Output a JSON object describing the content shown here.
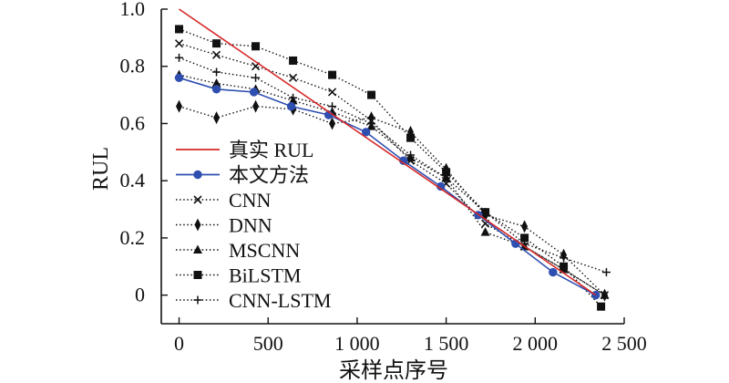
{
  "chart_data": {
    "type": "line",
    "xlabel": "采样点序号",
    "ylabel": "RUL",
    "xlim": [
      -100,
      2500
    ],
    "ylim": [
      -0.1,
      1.0
    ],
    "xticks": [
      0,
      500,
      1000,
      1500,
      2000,
      2500
    ],
    "xtick_labels": [
      "0",
      "500",
      "1 000",
      "1 500",
      "2 000",
      "2 500"
    ],
    "yticks": [
      0,
      0.2,
      0.4,
      0.6,
      0.8,
      1.0
    ],
    "ytick_labels": [
      "0",
      "0.2",
      "0.4",
      "0.6",
      "0.8",
      "1.0"
    ],
    "grid": false,
    "legend_position": "left",
    "series": [
      {
        "name": "真实 RUL",
        "style": "solid",
        "marker": "none",
        "color": "#d62728",
        "x": [
          0,
          2340
        ],
        "y": [
          1.0,
          0.0
        ]
      },
      {
        "name": "本文方法",
        "style": "solid",
        "marker": "circle",
        "color": "#2e4fb0",
        "x": [
          0,
          210,
          420,
          630,
          840,
          1050,
          1260,
          1470,
          1680,
          1890,
          2100,
          2340
        ],
        "y": [
          0.76,
          0.72,
          0.71,
          0.66,
          0.63,
          0.57,
          0.47,
          0.38,
          0.28,
          0.18,
          0.08,
          0.0
        ]
      },
      {
        "name": "CNN",
        "style": "dotted",
        "marker": "x",
        "color": "#111111",
        "x": [
          0,
          210,
          430,
          640,
          860,
          1080,
          1300,
          1500,
          1720,
          1940,
          2160,
          2390
        ],
        "y": [
          0.88,
          0.84,
          0.8,
          0.76,
          0.71,
          0.61,
          0.47,
          0.39,
          0.25,
          0.17,
          0.09,
          0.0
        ]
      },
      {
        "name": "DNN",
        "style": "dotted",
        "marker": "diamond",
        "color": "#111111",
        "x": [
          0,
          210,
          430,
          640,
          860,
          1080,
          1300,
          1500,
          1720,
          1940,
          2160,
          2390
        ],
        "y": [
          0.66,
          0.62,
          0.66,
          0.65,
          0.6,
          0.62,
          0.57,
          0.44,
          0.28,
          0.24,
          0.14,
          0.0
        ]
      },
      {
        "name": "MSCNN",
        "style": "dotted",
        "marker": "triangle",
        "color": "#111111",
        "x": [
          0,
          210,
          430,
          640,
          860,
          1080,
          1300,
          1500,
          1720,
          1940,
          2160,
          2390
        ],
        "y": [
          0.77,
          0.74,
          0.72,
          0.68,
          0.64,
          0.59,
          0.48,
          0.41,
          0.22,
          0.17,
          0.09,
          0.0
        ]
      },
      {
        "name": "BiLSTM",
        "style": "dotted",
        "marker": "square",
        "color": "#111111",
        "x": [
          0,
          210,
          430,
          640,
          860,
          1080,
          1300,
          1500,
          1720,
          1940,
          2160,
          2370
        ],
        "y": [
          0.93,
          0.88,
          0.87,
          0.82,
          0.77,
          0.7,
          0.55,
          0.43,
          0.29,
          0.2,
          0.1,
          -0.04
        ]
      },
      {
        "name": "CNN-LSTM",
        "style": "dotted",
        "marker": "plus",
        "color": "#111111",
        "x": [
          0,
          210,
          430,
          640,
          860,
          1080,
          1300,
          1500,
          1720,
          1940,
          2160,
          2400
        ],
        "y": [
          0.83,
          0.78,
          0.76,
          0.69,
          0.66,
          0.6,
          0.49,
          0.41,
          0.29,
          0.18,
          0.13,
          0.08
        ]
      }
    ]
  }
}
